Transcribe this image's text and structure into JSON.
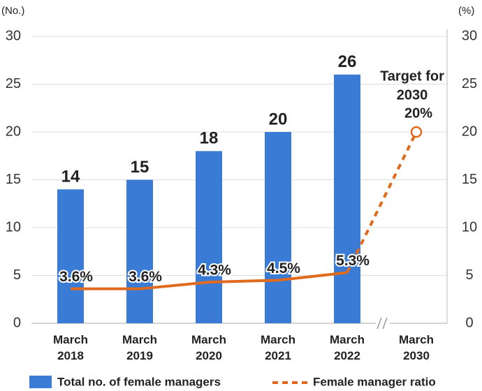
{
  "chart_data": {
    "type": "bar-line",
    "y_unit": "(No.)",
    "y2_unit": "(%)",
    "categories": [
      "March 2018",
      "March 2019",
      "March 2020",
      "March 2021",
      "March 2022",
      "March 2030"
    ],
    "series": [
      {
        "name": "Total no. of female managers",
        "color": "#3a7bd5",
        "type": "bar",
        "values": [
          14,
          15,
          18,
          20,
          26,
          null
        ]
      },
      {
        "name": "Female manager ratio",
        "color": "#e06a1e",
        "type": "line",
        "axis": "y2",
        "values": [
          3.6,
          3.6,
          4.3,
          4.5,
          5.3,
          20
        ],
        "value_labels": [
          "3.6%",
          "3.6%",
          "4.3%",
          "4.5%",
          "5.3%",
          "20%"
        ]
      }
    ],
    "annotation": [
      "Target for",
      "2030"
    ],
    "ylim": [
      0,
      30
    ],
    "yticks": [
      0,
      5,
      10,
      15,
      20,
      25,
      30
    ],
    "y2lim": [
      0,
      30
    ],
    "y2ticks": [
      0,
      5,
      10,
      15,
      20,
      25,
      30
    ],
    "grid": true
  }
}
